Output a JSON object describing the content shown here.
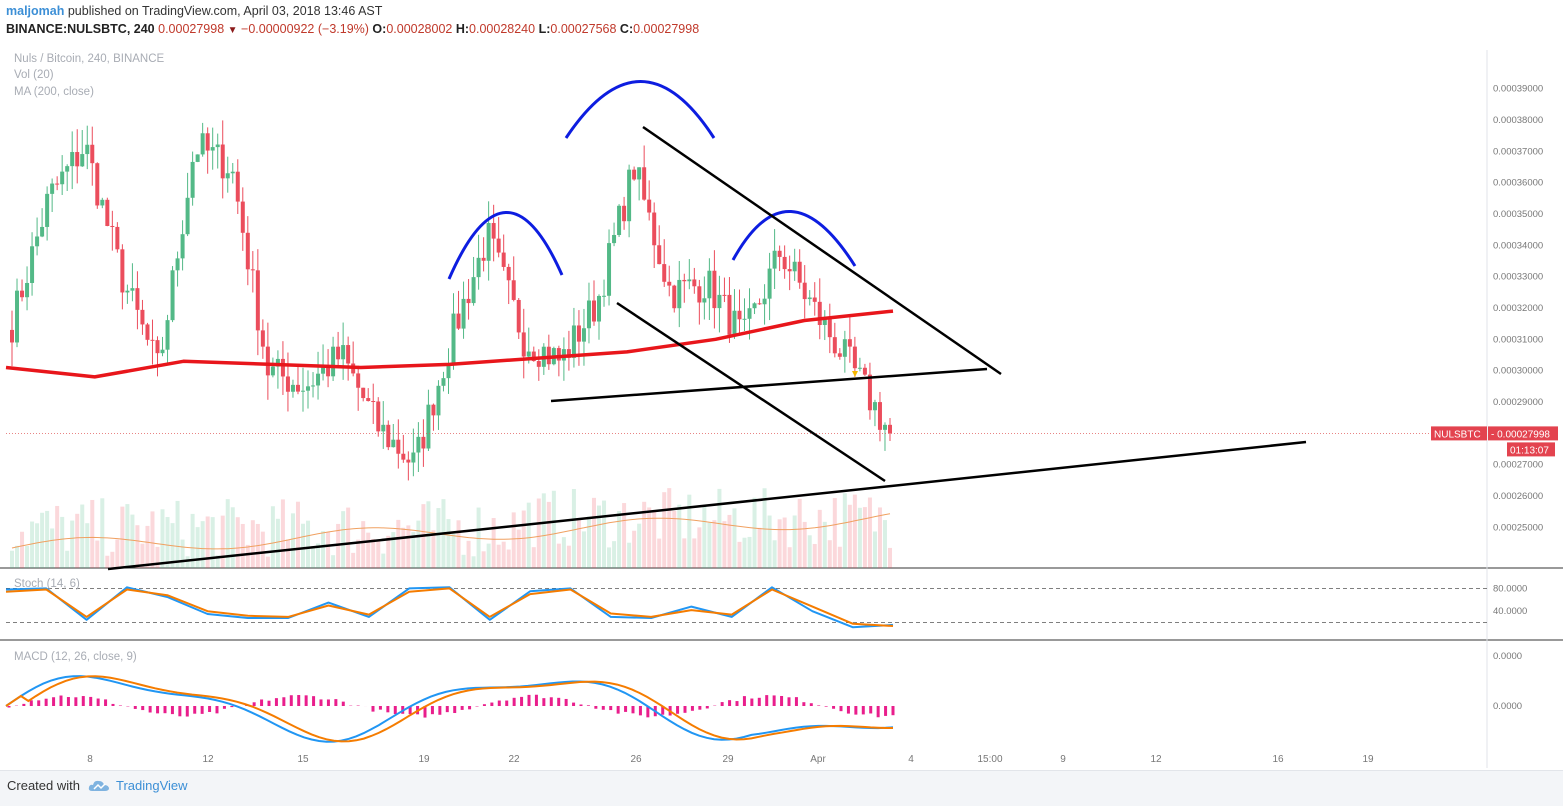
{
  "header": {
    "user": "maljomah",
    "published_text": "published on TradingView.com, April 03, 2018 13:46 AST",
    "symbol_line": "BINANCE:NULSBTC, 240",
    "last_price": "0.00027998",
    "change": "−0.00000922 (−3.19%)",
    "open_label": "O:",
    "open": "0.00028002",
    "high_label": "H:",
    "high": "0.00028240",
    "low_label": "L:",
    "low": "0.00027568",
    "close_label": "C:",
    "close": "0.00027998"
  },
  "legends": {
    "pair": "Nuls / Bitcoin, 240, BINANCE",
    "vol": "Vol (20)",
    "ma": "MA (200, close)",
    "stoch": "Stoch (14, 6)",
    "macd": "MACD (12, 26, close, 9)"
  },
  "price_badge": {
    "symbol": "NULSBTC",
    "value": "0.00027998",
    "countdown": "01:13:07"
  },
  "colors": {
    "up": "#53b987",
    "down": "#eb4d5c",
    "ma": "#e8161b",
    "stoch_k": "#2196f3",
    "stoch_d": "#f57c00",
    "macd_hist": "#e91e8c",
    "pattern_arc": "#0d1de0",
    "trendline": "#000000"
  },
  "footer": {
    "created_with": "Created with",
    "brand": "TradingView"
  },
  "chart_data": [
    {
      "type": "candlestick",
      "title": "Nuls / Bitcoin, 240, BINANCE",
      "y_ticks": [
        "0.00039000",
        "0.00038000",
        "0.00037000",
        "0.00036000",
        "0.00035000",
        "0.00034000",
        "0.00033000",
        "0.00032000",
        "0.00031000",
        "0.00030000",
        "0.00029000",
        "0.00027000",
        "0.00026000",
        "0.00025000"
      ],
      "ylim": [
        0.000245,
        0.000395
      ],
      "x_ticks": [
        "8",
        "12",
        "15",
        "19",
        "22",
        "26",
        "29",
        "Apr",
        "4",
        "15:00",
        "9",
        "12",
        "16",
        "19"
      ],
      "series_close_approx": [
        0.000315,
        0.000355,
        0.000372,
        0.00033,
        0.0003,
        0.000372,
        0.000365,
        0.0003,
        0.000295,
        0.000305,
        0.000282,
        0.00027,
        0.00031,
        0.000343,
        0.00031,
        0.000303,
        0.000322,
        0.000365,
        0.000325,
        0.000328,
        0.00031,
        0.000338,
        0.000318,
        0.0003,
        0.00028
      ],
      "ma_200": [
        0.000301,
        0.000298,
        0.000303,
        0.000302,
        0.000301,
        0.000302,
        0.000304,
        0.000306,
        0.00031,
        0.000316,
        0.000319
      ],
      "last_price": 0.00027998,
      "annotations": [
        "head and shoulders",
        "descending channel",
        "ascending support line",
        "horizontal neckline"
      ]
    },
    {
      "type": "line",
      "title": "Stoch (14, 6)",
      "y_ticks": [
        "80.0000",
        "40.0000"
      ],
      "series": [
        {
          "name": "%K",
          "values": [
            78,
            80,
            25,
            82,
            65,
            35,
            28,
            28,
            55,
            30,
            80,
            82,
            25,
            75,
            80,
            30,
            28,
            48,
            30,
            82,
            40,
            12,
            16
          ]
        },
        {
          "name": "%D",
          "values": [
            74,
            78,
            30,
            78,
            68,
            40,
            32,
            30,
            50,
            34,
            74,
            80,
            30,
            70,
            78,
            36,
            30,
            42,
            34,
            78,
            48,
            18,
            14
          ]
        }
      ]
    },
    {
      "type": "bar",
      "title": "MACD (12, 26, close, 9)",
      "y_ticks": [
        "0.0000",
        "0.0000"
      ]
    }
  ]
}
